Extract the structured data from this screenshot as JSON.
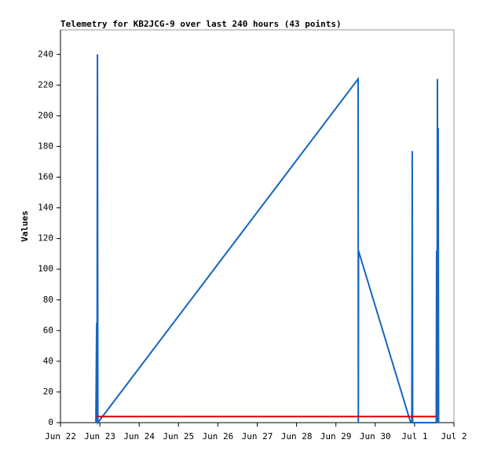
{
  "chart_data": {
    "type": "line",
    "title": "Telemetry for KB2JCG-9 over last 240 hours (43 points)",
    "y_label": "Values",
    "xlim": [
      0,
      10
    ],
    "xticks": [
      {
        "value": 0,
        "label": "Jun 22"
      },
      {
        "value": 1,
        "label": "Jun 23"
      },
      {
        "value": 2,
        "label": "Jun 24"
      },
      {
        "value": 3,
        "label": "Jun 25"
      },
      {
        "value": 4,
        "label": "Jun 26"
      },
      {
        "value": 5,
        "label": "Jun 27"
      },
      {
        "value": 6,
        "label": "Jun 28"
      },
      {
        "value": 7,
        "label": "Jun 29"
      },
      {
        "value": 8,
        "label": "Jun 30"
      },
      {
        "value": 9,
        "label": "Jul 1"
      },
      {
        "value": 10,
        "label": "Jul 2"
      }
    ],
    "ylim": [
      0,
      256
    ],
    "yticks": [
      0,
      20,
      40,
      60,
      80,
      100,
      120,
      140,
      160,
      180,
      200,
      220,
      240
    ],
    "series": [
      {
        "color": "#1565c0",
        "x": [
          0.9,
          0.92,
          0.93,
          0.94,
          0.95,
          7.565,
          7.57,
          7.575,
          8.9,
          8.93,
          8.94,
          8.95,
          9.55,
          9.56,
          9.57,
          9.58,
          9.59,
          9.6,
          9.61
        ],
        "values": [
          0,
          65,
          0,
          240,
          0,
          224,
          0,
          112,
          0,
          0,
          177,
          0,
          0,
          112,
          0,
          224,
          0,
          192,
          0
        ]
      },
      {
        "color": "#e00000",
        "x": [
          0.92,
          9.55
        ],
        "values": [
          4,
          4
        ]
      }
    ]
  }
}
